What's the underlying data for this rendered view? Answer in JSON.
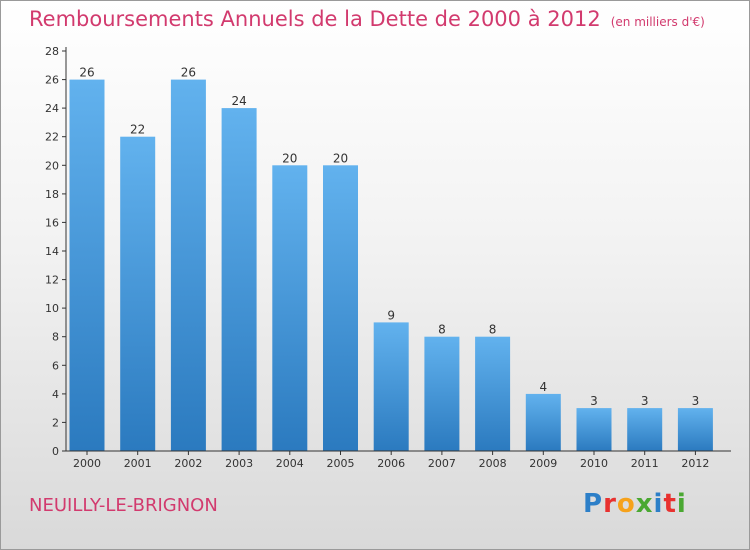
{
  "header": {
    "title": "Remboursements Annuels de la Dette de 2000 à 2012",
    "unit": "(en milliers d'€)"
  },
  "footer": {
    "commune": "NEUILLY-LE-BRIGNON",
    "logo_text": "Proxiti",
    "logo_colors": [
      "#2c7fc8",
      "#e8312f",
      "#f6a21b",
      "#4aa832",
      "#2c7fc8",
      "#e8312f",
      "#4aa832"
    ]
  },
  "colors": {
    "title": "#d23a6e",
    "bar_top": "#62b2ee",
    "bar_bottom": "#2b7abf",
    "axis": "#333333",
    "grid": "#cfcfcf"
  },
  "chart_data": {
    "type": "bar",
    "categories": [
      "2000",
      "2001",
      "2002",
      "2003",
      "2004",
      "2005",
      "2006",
      "2007",
      "2008",
      "2009",
      "2010",
      "2011",
      "2012"
    ],
    "values": [
      26,
      22,
      26,
      24,
      20,
      20,
      9,
      8,
      8,
      4,
      3,
      3,
      3
    ],
    "data_labels": [
      "26",
      "22",
      "26",
      "24",
      "20",
      "20",
      "9",
      "8",
      "8",
      "4",
      "3",
      "3",
      "3"
    ],
    "y_ticks": [
      0,
      2,
      4,
      6,
      8,
      10,
      12,
      14,
      16,
      18,
      20,
      22,
      24,
      26,
      28
    ],
    "ylim": [
      0,
      28
    ],
    "grid": false
  }
}
